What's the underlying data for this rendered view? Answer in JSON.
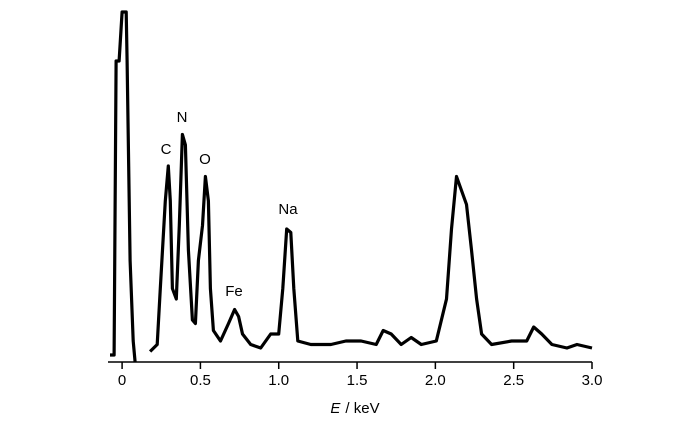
{
  "chart_data": {
    "type": "line",
    "x": [
      -0.077,
      -0.051,
      -0.038,
      -0.019,
      0,
      0.026,
      0.032,
      0.051,
      0.071,
      0.083,
      0.13,
      0.179,
      0.224,
      0.244,
      0.276,
      0.295,
      0.308,
      0.321,
      0.346,
      0.365,
      0.385,
      0.404,
      0.423,
      0.449,
      0.468,
      0.487,
      0.513,
      0.532,
      0.551,
      0.564,
      0.583,
      0.628,
      0.679,
      0.718,
      0.744,
      0.769,
      0.821,
      0.885,
      0.949,
      1.0,
      1.026,
      1.051,
      1.077,
      1.096,
      1.122,
      1.205,
      1.333,
      1.429,
      1.526,
      1.622,
      1.667,
      1.718,
      1.782,
      1.846,
      1.91,
      2.006,
      2.071,
      2.103,
      2.135,
      2.167,
      2.199,
      2.231,
      2.263,
      2.295,
      2.359,
      2.487,
      2.583,
      2.628,
      2.679,
      2.744,
      2.84,
      2.904,
      3.0
    ],
    "series": [
      {
        "color": "#000000",
        "values": [
          2,
          2,
          86,
          86,
          100,
          100,
          86,
          29,
          6,
          0,
          null,
          3,
          5,
          21,
          46,
          56,
          46,
          21,
          18,
          39,
          65,
          62,
          32,
          12,
          11,
          29,
          39,
          53,
          46,
          21,
          9,
          6,
          11,
          15,
          13,
          8,
          5,
          4,
          8,
          8,
          21,
          38,
          37,
          21,
          6,
          5,
          5,
          6,
          6,
          5,
          9,
          8,
          5,
          7,
          5,
          6,
          18,
          38,
          53,
          49,
          45,
          32,
          18,
          8,
          5,
          6,
          6,
          10,
          8,
          5,
          4,
          5,
          4
        ]
      }
    ],
    "xlim": [
      -0.09,
      3.0
    ],
    "ylim": [
      0,
      100
    ],
    "xticks": [
      0,
      0.5,
      {
        "value": 1,
        "label": "1.0"
      },
      1.5,
      {
        "value": 2,
        "label": "2.0"
      },
      2.5,
      {
        "value": 3,
        "label": "3.0"
      }
    ],
    "xlabel": {
      "symbol": "E",
      "unit": "/ keV"
    },
    "annotations": [
      "C",
      "N",
      "O",
      "Fe",
      "Na"
    ]
  }
}
